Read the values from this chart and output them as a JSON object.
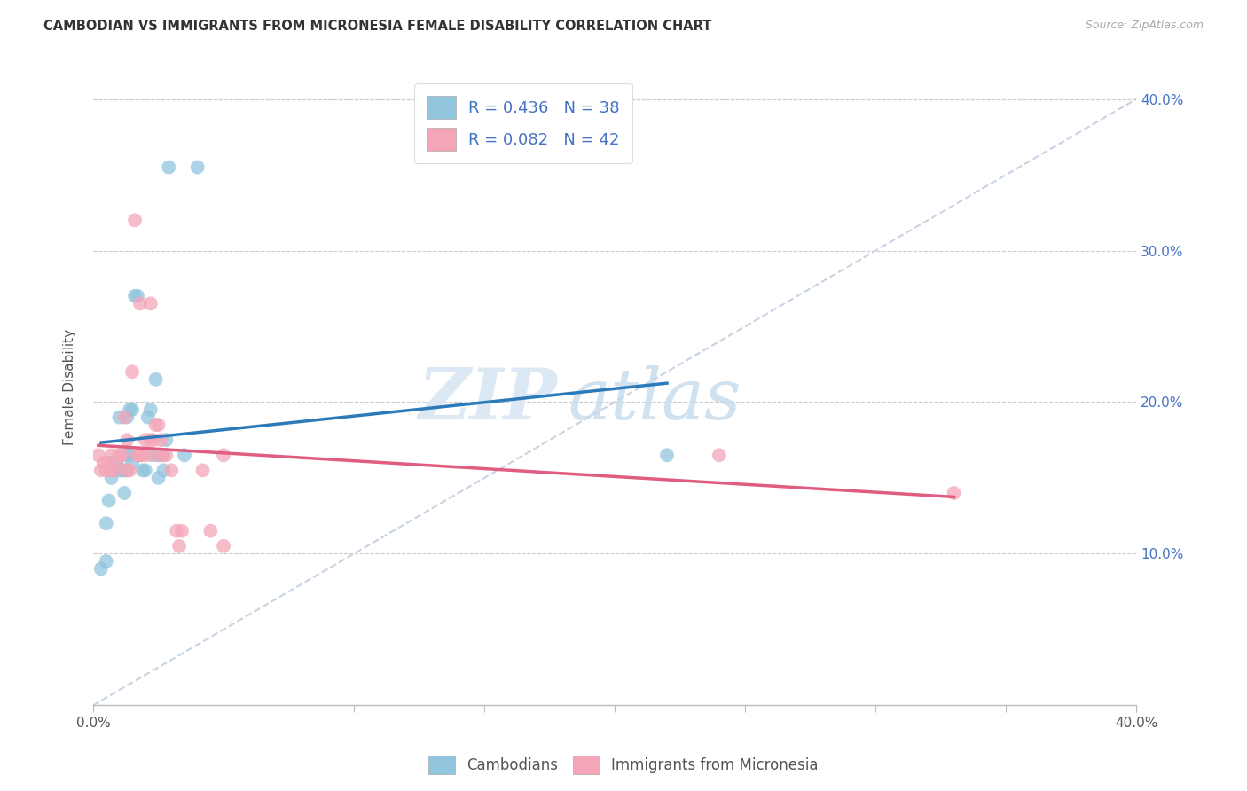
{
  "title": "CAMBODIAN VS IMMIGRANTS FROM MICRONESIA FEMALE DISABILITY CORRELATION CHART",
  "source": "Source: ZipAtlas.com",
  "ylabel": "Female Disability",
  "xlim": [
    0.0,
    0.4
  ],
  "ylim": [
    0.0,
    0.42
  ],
  "x_ticks": [
    0.0,
    0.05,
    0.1,
    0.15,
    0.2,
    0.25,
    0.3,
    0.35,
    0.4
  ],
  "x_tick_labels": [
    "0.0%",
    "",
    "",
    "",
    "",
    "",
    "",
    "",
    "40.0%"
  ],
  "y_ticks": [
    0.0,
    0.1,
    0.2,
    0.3,
    0.4
  ],
  "y_tick_labels_right": [
    "",
    "10.0%",
    "20.0%",
    "30.0%",
    "40.0%"
  ],
  "legend_r1": "R = 0.436",
  "legend_n1": "N = 38",
  "legend_r2": "R = 0.082",
  "legend_n2": "N = 42",
  "legend_label1": "Cambodians",
  "legend_label2": "Immigrants from Micronesia",
  "blue_color": "#92c5de",
  "pink_color": "#f4a6b8",
  "blue_line_color": "#2b7bba",
  "pink_line_color": "#e05c80",
  "diagonal_color": "#c8d4e4",
  "cambodian_x": [
    0.003,
    0.005,
    0.005,
    0.006,
    0.007,
    0.007,
    0.008,
    0.009,
    0.01,
    0.01,
    0.011,
    0.012,
    0.012,
    0.013,
    0.013,
    0.013,
    0.014,
    0.014,
    0.015,
    0.015,
    0.016,
    0.017,
    0.018,
    0.019,
    0.02,
    0.021,
    0.022,
    0.023,
    0.024,
    0.025,
    0.025,
    0.026,
    0.027,
    0.028,
    0.029,
    0.04,
    0.22,
    0.035
  ],
  "cambodian_y": [
    0.09,
    0.12,
    0.095,
    0.135,
    0.15,
    0.155,
    0.16,
    0.16,
    0.155,
    0.19,
    0.155,
    0.14,
    0.155,
    0.155,
    0.165,
    0.19,
    0.165,
    0.195,
    0.16,
    0.195,
    0.27,
    0.27,
    0.165,
    0.155,
    0.155,
    0.19,
    0.195,
    0.165,
    0.215,
    0.15,
    0.165,
    0.165,
    0.155,
    0.175,
    0.355,
    0.355,
    0.165,
    0.165
  ],
  "micronesia_x": [
    0.002,
    0.003,
    0.004,
    0.005,
    0.006,
    0.007,
    0.007,
    0.008,
    0.009,
    0.01,
    0.011,
    0.012,
    0.013,
    0.013,
    0.014,
    0.015,
    0.016,
    0.017,
    0.018,
    0.018,
    0.019,
    0.02,
    0.021,
    0.022,
    0.022,
    0.023,
    0.024,
    0.025,
    0.025,
    0.026,
    0.027,
    0.028,
    0.03,
    0.032,
    0.033,
    0.034,
    0.042,
    0.24,
    0.045,
    0.05,
    0.33,
    0.05
  ],
  "micronesia_y": [
    0.165,
    0.155,
    0.16,
    0.155,
    0.16,
    0.165,
    0.155,
    0.155,
    0.16,
    0.165,
    0.165,
    0.19,
    0.155,
    0.175,
    0.155,
    0.22,
    0.32,
    0.165,
    0.165,
    0.265,
    0.165,
    0.175,
    0.165,
    0.175,
    0.265,
    0.175,
    0.185,
    0.185,
    0.165,
    0.175,
    0.165,
    0.165,
    0.155,
    0.115,
    0.105,
    0.115,
    0.155,
    0.165,
    0.115,
    0.105,
    0.14,
    0.165
  ]
}
